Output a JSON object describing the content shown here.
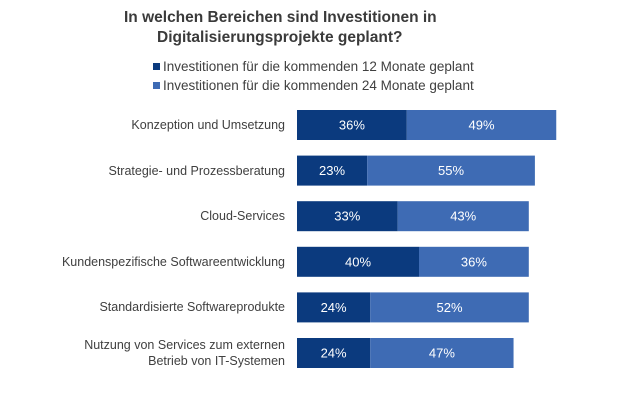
{
  "chart_data": {
    "type": "bar",
    "orientation": "horizontal",
    "stacked": true,
    "title": "In welchen Bereichen sind Investitionen in Digitalisierungsprojekte geplant?",
    "title_lines": [
      "In welchen Bereichen sind Investitionen in",
      "Digitalisierungsprojekte geplant?"
    ],
    "xlabel": "",
    "ylabel": "",
    "xlim": [
      0,
      100
    ],
    "grid": false,
    "legend_position": "top",
    "categories": [
      "Konzeption und Umsetzung",
      "Strategie- und Prozessberatung",
      "Cloud-Services",
      "Kundenspezifische Softwareentwicklung",
      "Standardisierte Softwareprodukte",
      "Nutzung von Services zum externen Betrieb von IT-Systemen"
    ],
    "category_lines": [
      [
        "Konzeption und Umsetzung"
      ],
      [
        "Strategie- und Prozessberatung"
      ],
      [
        "Cloud-Services"
      ],
      [
        "Kundenspezifische Softwareentwicklung"
      ],
      [
        "Standardisierte Softwareprodukte"
      ],
      [
        "Nutzung von Services zum externen",
        "Betrieb von IT-Systemen"
      ]
    ],
    "series": [
      {
        "name": "Investitionen für die kommenden 12 Monate geplant",
        "color": "#0b3a7e",
        "values": [
          36,
          23,
          33,
          40,
          24,
          24
        ],
        "labels": [
          "36%",
          "23%",
          "33%",
          "40%",
          "24%",
          "24%"
        ]
      },
      {
        "name": "Investitionen für die kommenden 24 Monate geplant",
        "color": "#3e6bb4",
        "values": [
          49,
          55,
          43,
          36,
          52,
          47
        ],
        "labels": [
          "49%",
          "55%",
          "43%",
          "36%",
          "52%",
          "47%"
        ]
      }
    ]
  }
}
